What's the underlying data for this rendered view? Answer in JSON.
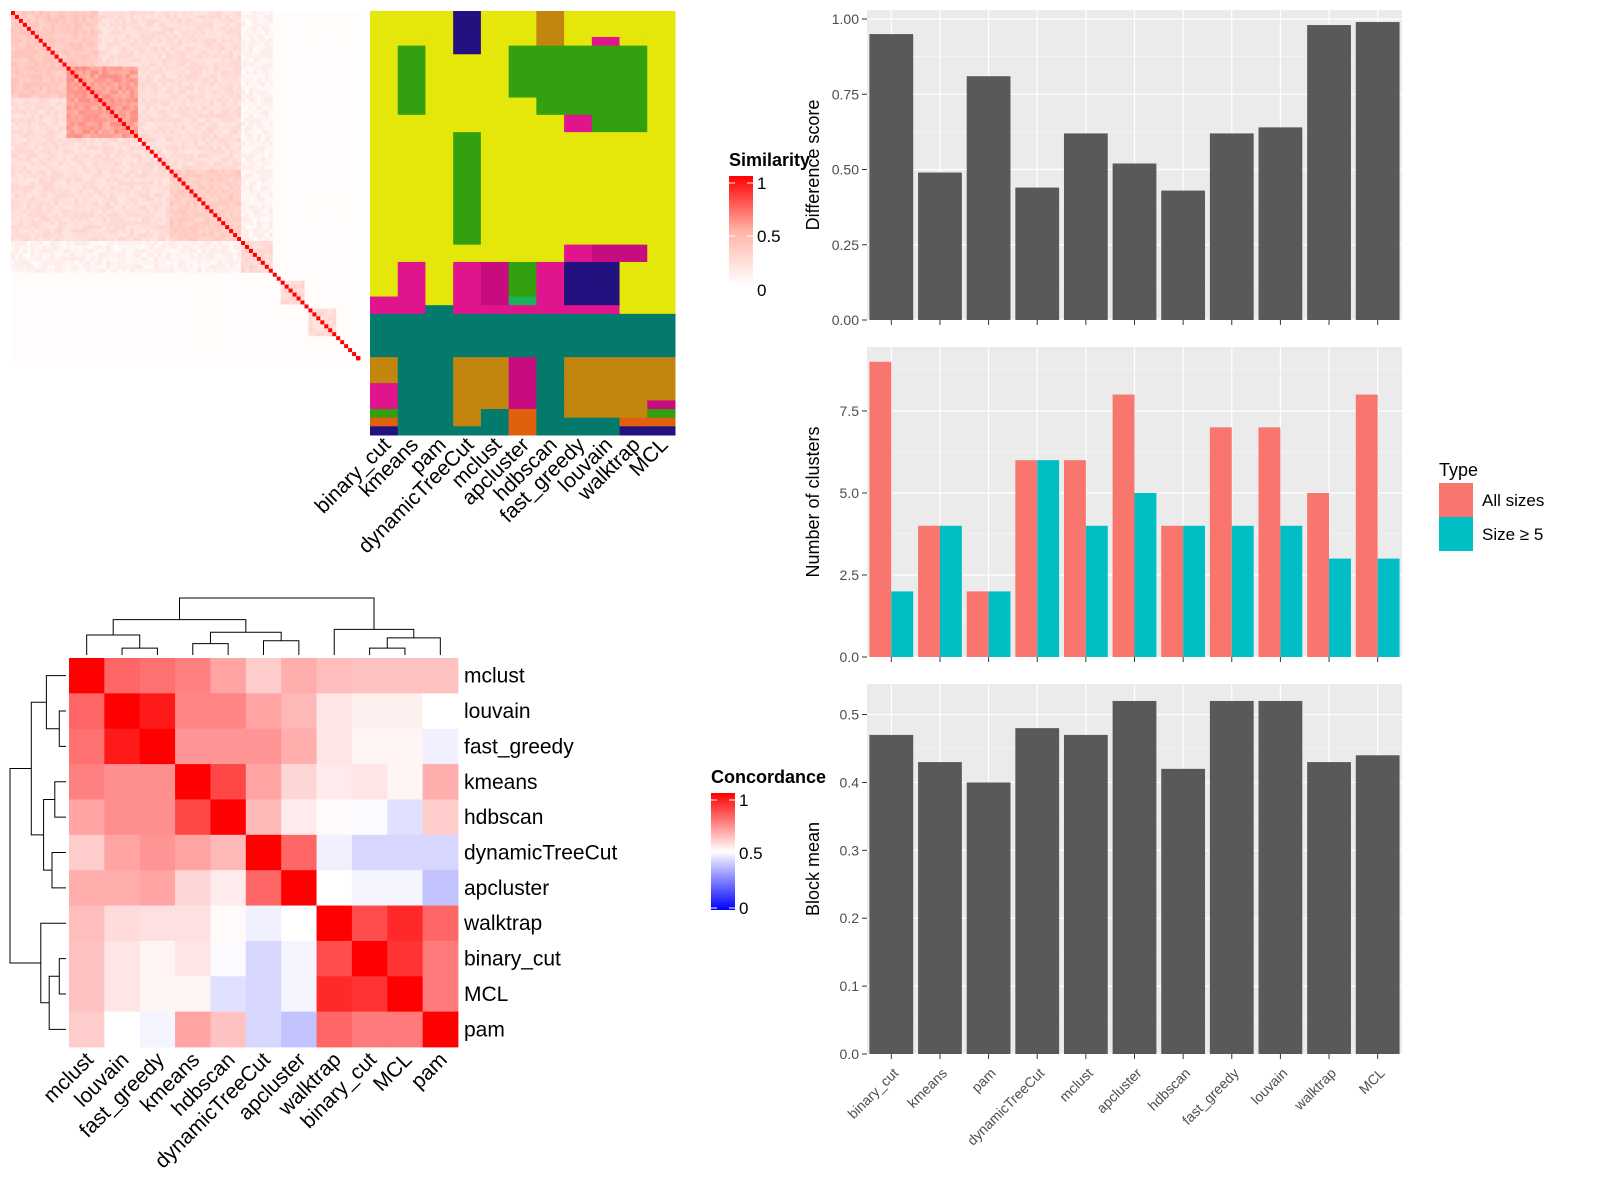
{
  "chart_data": [
    {
      "id": "similarity_heatmap",
      "type": "heatmap",
      "legend": {
        "title": "Similarity",
        "ticks": [
          "1",
          "0.5",
          "0"
        ]
      },
      "colors": {
        "high": "#ff0000",
        "mid": "#ffb3a7",
        "low": "#ffffff"
      },
      "blocks": [
        {
          "start": 0,
          "end": 22,
          "level": 0.35
        },
        {
          "start": 14,
          "end": 32,
          "level": 0.55
        },
        {
          "start": 40,
          "end": 58,
          "level": 0.32
        },
        {
          "start": 0,
          "end": 58,
          "level": 0.22
        },
        {
          "start": 58,
          "end": 66,
          "level": 0.25
        },
        {
          "start": 68,
          "end": 74,
          "level": 0.25
        },
        {
          "start": 75,
          "end": 82,
          "level": 0.22
        },
        {
          "start": 0,
          "end": 66,
          "level": 0.08
        }
      ],
      "size": 88
    },
    {
      "id": "cluster_assignment",
      "type": "heatmap",
      "columns": [
        "binary_cut",
        "kmeans",
        "pam",
        "dynamicTreeCut",
        "mclust",
        "apcluster",
        "hdbscan",
        "fast_greedy",
        "louvain",
        "walktrap",
        "MCL"
      ],
      "palette": {
        "Y": "#e5e70a",
        "G": "#33a010",
        "P": "#e0158e",
        "T": "#047a6c",
        "B": "#c2860e",
        "N": "#231180",
        "M": "#c60c7e",
        "O": "#e0600e",
        "L": "#1bb05a"
      },
      "row_groups": [
        {
          "rows": 6,
          "cells": [
            "Y",
            "Y",
            "Y",
            "N",
            "Y",
            "Y",
            "B",
            "Y",
            "Y",
            "Y",
            "Y"
          ]
        },
        {
          "rows": 2,
          "cells": [
            "Y",
            "Y",
            "Y",
            "N",
            "Y",
            "Y",
            "B",
            "Y",
            "P",
            "Y",
            "Y"
          ]
        },
        {
          "rows": 2,
          "cells": [
            "Y",
            "G",
            "Y",
            "N",
            "Y",
            "G",
            "G",
            "G",
            "G",
            "G",
            "Y"
          ]
        },
        {
          "rows": 10,
          "cells": [
            "Y",
            "G",
            "Y",
            "Y",
            "Y",
            "G",
            "G",
            "G",
            "G",
            "G",
            "Y"
          ]
        },
        {
          "rows": 4,
          "cells": [
            "Y",
            "G",
            "Y",
            "Y",
            "Y",
            "Y",
            "G",
            "G",
            "G",
            "G",
            "Y"
          ]
        },
        {
          "rows": 4,
          "cells": [
            "Y",
            "Y",
            "Y",
            "Y",
            "Y",
            "Y",
            "Y",
            "P",
            "G",
            "G",
            "Y"
          ]
        },
        {
          "rows": 2,
          "cells": [
            "Y",
            "Y",
            "Y",
            "G",
            "Y",
            "Y",
            "Y",
            "Y",
            "Y",
            "Y",
            "Y"
          ]
        },
        {
          "rows": 24,
          "cells": [
            "Y",
            "Y",
            "Y",
            "G",
            "Y",
            "Y",
            "Y",
            "Y",
            "Y",
            "Y",
            "Y"
          ]
        },
        {
          "rows": 4,
          "cells": [
            "Y",
            "Y",
            "Y",
            "Y",
            "Y",
            "Y",
            "Y",
            "P",
            "M",
            "M",
            "Y"
          ]
        },
        {
          "rows": 8,
          "cells": [
            "Y",
            "P",
            "Y",
            "P",
            "M",
            "G",
            "P",
            "N",
            "N",
            "Y",
            "Y"
          ]
        },
        {
          "rows": 2,
          "cells": [
            "P",
            "P",
            "Y",
            "P",
            "M",
            "L",
            "P",
            "N",
            "N",
            "Y",
            "Y"
          ]
        },
        {
          "rows": 2,
          "cells": [
            "P",
            "P",
            "T",
            "P",
            "P",
            "P",
            "P",
            "P",
            "P",
            "Y",
            "Y"
          ]
        },
        {
          "rows": 6,
          "cells": [
            "T",
            "T",
            "T",
            "T",
            "T",
            "T",
            "T",
            "T",
            "T",
            "T",
            "T"
          ]
        },
        {
          "rows": 4,
          "cells": [
            "T",
            "T",
            "T",
            "T",
            "T",
            "T",
            "T",
            "T",
            "T",
            "T",
            "T"
          ]
        },
        {
          "rows": 6,
          "cells": [
            "B",
            "T",
            "T",
            "B",
            "B",
            "M",
            "T",
            "B",
            "B",
            "B",
            "B"
          ]
        },
        {
          "rows": 4,
          "cells": [
            "P",
            "T",
            "T",
            "B",
            "B",
            "M",
            "T",
            "B",
            "B",
            "B",
            "B"
          ]
        },
        {
          "rows": 2,
          "cells": [
            "P",
            "T",
            "T",
            "B",
            "B",
            "M",
            "T",
            "B",
            "B",
            "B",
            "M"
          ]
        },
        {
          "rows": 2,
          "cells": [
            "G",
            "T",
            "T",
            "B",
            "T",
            "O",
            "T",
            "B",
            "B",
            "B",
            "G"
          ]
        },
        {
          "rows": 2,
          "cells": [
            "O",
            "T",
            "T",
            "B",
            "T",
            "O",
            "T",
            "T",
            "T",
            "O",
            "O"
          ]
        },
        {
          "rows": 2,
          "cells": [
            "N",
            "T",
            "T",
            "T",
            "T",
            "O",
            "T",
            "T",
            "T",
            "N",
            "N"
          ]
        }
      ]
    },
    {
      "id": "concordance_heatmap",
      "type": "heatmap",
      "labels": [
        "mclust",
        "louvain",
        "fast_greedy",
        "kmeans",
        "hdbscan",
        "dynamicTreeCut",
        "apcluster",
        "walktrap",
        "binary_cut",
        "MCL",
        "pam"
      ],
      "legend": {
        "title": "Concordance",
        "ticks": [
          "1",
          "0.5",
          "0"
        ]
      },
      "colors": {
        "high": "#ff0000",
        "mid": "#ffffff",
        "low": "#0000ff"
      },
      "values": [
        [
          1.0,
          0.8,
          0.78,
          0.75,
          0.68,
          0.6,
          0.66,
          0.63,
          0.62,
          0.62,
          0.62
        ],
        [
          0.8,
          1.0,
          0.95,
          0.74,
          0.74,
          0.68,
          0.64,
          0.55,
          0.53,
          0.53,
          0.5
        ],
        [
          0.78,
          0.95,
          1.0,
          0.71,
          0.71,
          0.71,
          0.66,
          0.55,
          0.52,
          0.52,
          0.47
        ],
        [
          0.75,
          0.72,
          0.72,
          1.0,
          0.86,
          0.68,
          0.58,
          0.54,
          0.55,
          0.52,
          0.66
        ],
        [
          0.68,
          0.72,
          0.72,
          0.86,
          1.0,
          0.64,
          0.54,
          0.51,
          0.49,
          0.44,
          0.6
        ],
        [
          0.6,
          0.68,
          0.71,
          0.68,
          0.64,
          1.0,
          0.8,
          0.47,
          0.42,
          0.42,
          0.42
        ],
        [
          0.66,
          0.66,
          0.68,
          0.58,
          0.54,
          0.8,
          1.0,
          0.5,
          0.48,
          0.48,
          0.38
        ],
        [
          0.63,
          0.57,
          0.56,
          0.56,
          0.51,
          0.47,
          0.5,
          1.0,
          0.85,
          0.92,
          0.8
        ],
        [
          0.62,
          0.55,
          0.52,
          0.55,
          0.49,
          0.42,
          0.48,
          0.85,
          1.0,
          0.9,
          0.76
        ],
        [
          0.62,
          0.55,
          0.52,
          0.52,
          0.44,
          0.42,
          0.48,
          0.92,
          0.9,
          1.0,
          0.76
        ],
        [
          0.6,
          0.5,
          0.48,
          0.68,
          0.62,
          0.42,
          0.38,
          0.8,
          0.76,
          0.76,
          1.0
        ]
      ]
    },
    {
      "id": "difference_score",
      "type": "bar",
      "categories": [
        "binary_cut",
        "kmeans",
        "pam",
        "dynamicTreeCut",
        "mclust",
        "apcluster",
        "hdbscan",
        "fast_greedy",
        "louvain",
        "walktrap",
        "MCL"
      ],
      "values": [
        0.95,
        0.49,
        0.81,
        0.44,
        0.62,
        0.52,
        0.43,
        0.62,
        0.64,
        0.98,
        0.99
      ],
      "ylabel": "Difference score",
      "ylim": [
        0,
        1.03
      ],
      "yticks": [
        "0.00",
        "0.25",
        "0.50",
        "0.75",
        "1.00"
      ],
      "bar_color": "#595959",
      "panel_color": "#ebebeb"
    },
    {
      "id": "number_of_clusters",
      "type": "bar",
      "categories": [
        "binary_cut",
        "kmeans",
        "pam",
        "dynamicTreeCut",
        "mclust",
        "apcluster",
        "hdbscan",
        "fast_greedy",
        "louvain",
        "walktrap",
        "MCL"
      ],
      "series": [
        {
          "name": "All sizes",
          "color": "#f8766d",
          "values": [
            9,
            4,
            2,
            6,
            6,
            8,
            4,
            7,
            7,
            5,
            8
          ]
        },
        {
          "name": "Size ≥ 5",
          "color": "#00bfc4",
          "values": [
            2,
            4,
            2,
            6,
            4,
            5,
            4,
            4,
            4,
            3,
            3
          ]
        }
      ],
      "ylabel": "Number of clusters",
      "ylim": [
        0,
        9.45
      ],
      "yticks": [
        "0.0",
        "2.5",
        "5.0",
        "7.5"
      ],
      "legend": {
        "title": "Type",
        "position": "right"
      },
      "panel_color": "#ebebeb"
    },
    {
      "id": "block_mean",
      "type": "bar",
      "categories": [
        "binary_cut",
        "kmeans",
        "pam",
        "dynamicTreeCut",
        "mclust",
        "apcluster",
        "hdbscan",
        "fast_greedy",
        "louvain",
        "walktrap",
        "MCL"
      ],
      "values": [
        0.47,
        0.43,
        0.4,
        0.48,
        0.47,
        0.52,
        0.42,
        0.52,
        0.52,
        0.43,
        0.44
      ],
      "ylabel": "Block mean",
      "ylim": [
        0,
        0.545
      ],
      "yticks": [
        "0.0",
        "0.1",
        "0.2",
        "0.3",
        "0.4",
        "0.5"
      ],
      "bar_color": "#595959",
      "panel_color": "#ebebeb"
    }
  ]
}
